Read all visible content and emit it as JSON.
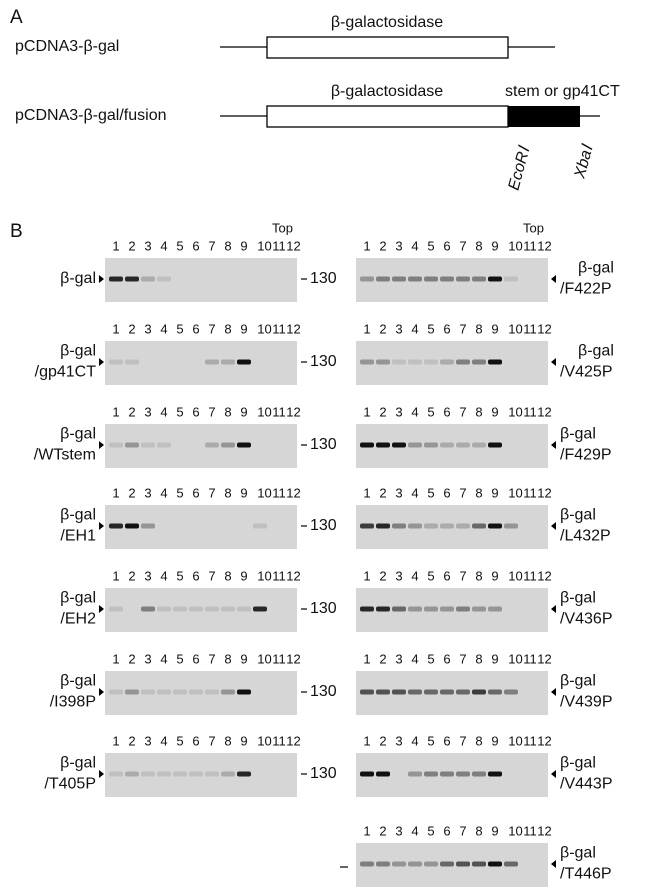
{
  "panel_a": {
    "label": "A",
    "constructs": [
      {
        "name": "pCDNA3-β-gal",
        "gene": "β-galactosidase"
      },
      {
        "name": "pCDNA3-β-gal/fusion",
        "gene": "β-galactosidase",
        "insert": "stem or gp41CT",
        "sites": [
          "EcoRⅠ",
          "XbaⅠ"
        ]
      }
    ]
  },
  "panel_b": {
    "label": "B",
    "top_label": "Top",
    "marker": "130",
    "lanes": [
      "1",
      "2",
      "3",
      "4",
      "5",
      "6",
      "7",
      "8",
      "9",
      "10",
      "11",
      "12"
    ],
    "left_blots": [
      {
        "label": [
          "β-gal"
        ]
      },
      {
        "label": [
          "β-gal",
          "/gp41CT"
        ]
      },
      {
        "label": [
          "β-gal",
          "/WTstem"
        ]
      },
      {
        "label": [
          "β-gal",
          "/EH1"
        ]
      },
      {
        "label": [
          "β-gal",
          "/EH2"
        ]
      },
      {
        "label": [
          "β-gal",
          "/I398P"
        ]
      },
      {
        "label": [
          "β-gal",
          "/T405P"
        ]
      }
    ],
    "right_blots": [
      {
        "label": [
          "β-gal",
          "/F422P"
        ]
      },
      {
        "label": [
          "β-gal",
          "/V425P"
        ]
      },
      {
        "label": [
          "β-gal",
          "/F429P"
        ]
      },
      {
        "label": [
          "β-gal",
          "/L432P"
        ]
      },
      {
        "label": [
          "β-gal",
          "/V436P"
        ]
      },
      {
        "label": [
          "β-gal",
          "/V439P"
        ]
      },
      {
        "label": [
          "β-gal",
          "/V443P"
        ]
      },
      {
        "label": [
          "β-gal",
          "/T446P"
        ]
      }
    ]
  }
}
